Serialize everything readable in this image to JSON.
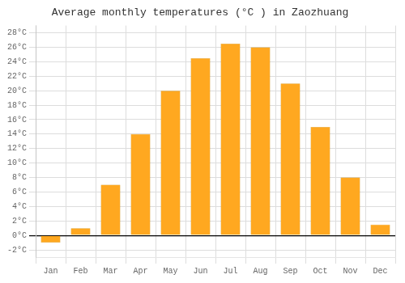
{
  "chart_data": {
    "type": "bar",
    "title": "Average monthly temperatures (°C ) in Zaozhuang",
    "categories": [
      "Jan",
      "Feb",
      "Mar",
      "Apr",
      "May",
      "Jun",
      "Jul",
      "Aug",
      "Sep",
      "Oct",
      "Nov",
      "Dec"
    ],
    "values": [
      -1,
      1,
      7,
      14,
      20,
      24.5,
      26.5,
      26,
      21,
      15,
      8,
      1.5
    ],
    "color": "#FFA820",
    "ylim": [
      -3,
      29
    ],
    "yticks": [
      {
        "value": -2,
        "label": "-2°C"
      },
      {
        "value": 0,
        "label": "0°C"
      },
      {
        "value": 2,
        "label": "2°C"
      },
      {
        "value": 4,
        "label": "4°C"
      },
      {
        "value": 6,
        "label": "6°C"
      },
      {
        "value": 8,
        "label": "8°C"
      },
      {
        "value": 10,
        "label": "10°C"
      },
      {
        "value": 12,
        "label": "12°C"
      },
      {
        "value": 14,
        "label": "14°C"
      },
      {
        "value": 16,
        "label": "16°C"
      },
      {
        "value": 18,
        "label": "18°C"
      },
      {
        "value": 20,
        "label": "20°C"
      },
      {
        "value": 22,
        "label": "22°C"
      },
      {
        "value": 24,
        "label": "24°C"
      },
      {
        "value": 26,
        "label": "26°C"
      },
      {
        "value": 28,
        "label": "28°C"
      }
    ],
    "grid": true
  }
}
